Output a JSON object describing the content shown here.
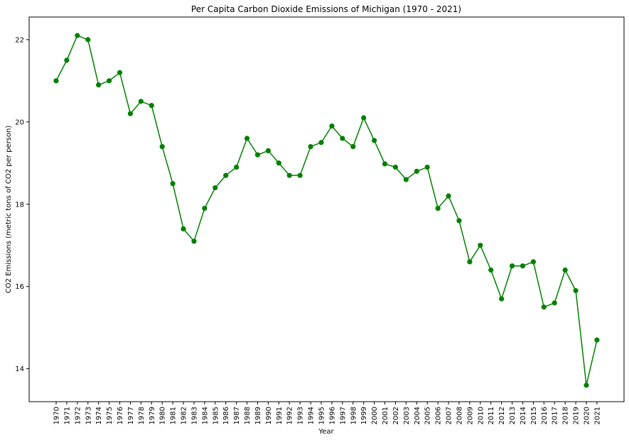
{
  "chart_data": {
    "type": "line",
    "title": "Per Capita Carbon Dioxide Emissions of Michigan (1970 - 2021)",
    "xlabel": "Year",
    "ylabel": "CO2 Emissions (metric tons of CO2 per person)",
    "x": [
      "1970",
      "1971",
      "1972",
      "1973",
      "1974",
      "1975",
      "1976",
      "1977",
      "1978",
      "1979",
      "1980",
      "1981",
      "1982",
      "1983",
      "1984",
      "1985",
      "1986",
      "1987",
      "1988",
      "1989",
      "1990",
      "1991",
      "1992",
      "1993",
      "1994",
      "1995",
      "1996",
      "1997",
      "1998",
      "1999",
      "2000",
      "2001",
      "2002",
      "2003",
      "2004",
      "2005",
      "2006",
      "2007",
      "2008",
      "2009",
      "2010",
      "2011",
      "2012",
      "2013",
      "2014",
      "2015",
      "2016",
      "2017",
      "2018",
      "2019",
      "2020",
      "2021"
    ],
    "series": [
      {
        "values": [
          21.0,
          21.5,
          22.1,
          22.0,
          20.9,
          21.0,
          21.2,
          20.2,
          20.5,
          20.4,
          19.4,
          18.5,
          17.4,
          17.1,
          17.9,
          18.4,
          18.7,
          18.9,
          19.6,
          19.2,
          19.3,
          19.0,
          18.7,
          18.7,
          19.4,
          19.5,
          19.9,
          19.6,
          19.4,
          20.1,
          19.55,
          18.98,
          18.9,
          18.6,
          18.8,
          18.9,
          17.9,
          18.2,
          17.6,
          16.6,
          17.0,
          16.4,
          15.7,
          16.5,
          16.5,
          16.6,
          15.5,
          15.6,
          16.4,
          15.9,
          13.6,
          14.7
        ]
      }
    ],
    "yticks": [
      14,
      16,
      18,
      20,
      22
    ],
    "ylim": [
      13.2,
      22.55
    ],
    "grid": false,
    "line_color": "#008000",
    "marker_color": "#008000"
  }
}
